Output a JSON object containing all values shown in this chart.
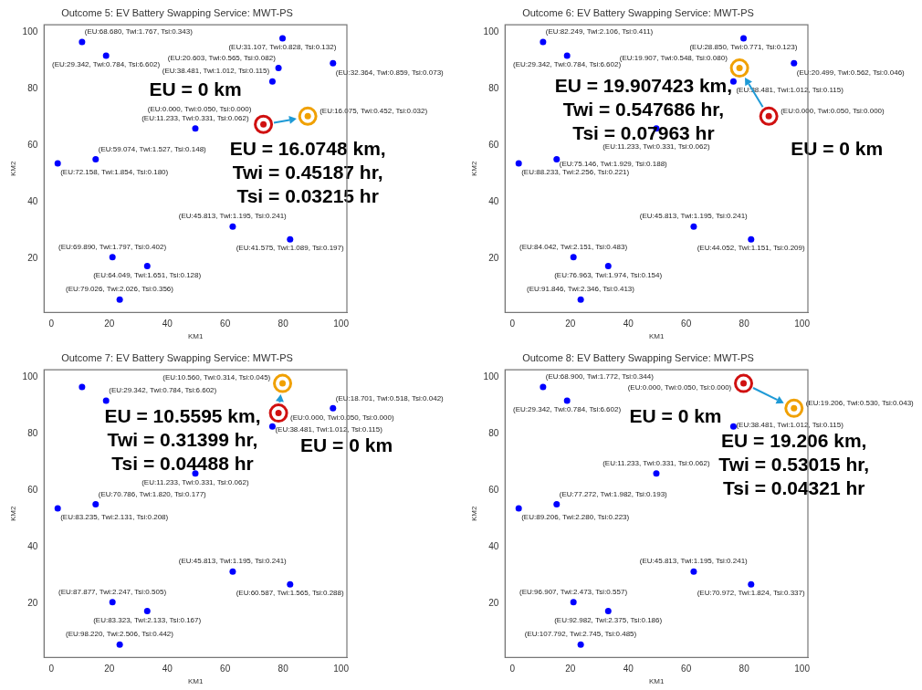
{
  "chart_data": [
    {
      "type": "scatter",
      "title": "Outcome 5: EV Battery Swapping Service: MWT-PS",
      "xlabel": "KM1",
      "ylabel": "KM2",
      "xlim": [
        -2.5,
        102
      ],
      "ylim": [
        0.9,
        102.6
      ],
      "xticks": [
        0,
        20,
        40,
        60,
        80,
        100
      ],
      "yticks": [
        20,
        40,
        60,
        80,
        100
      ],
      "marker": "circle",
      "series": [
        {
          "color": "#0000ff",
          "x": [
            10.6,
            18.9,
            79.8,
            97.2,
            78.4,
            76.3,
            49.7,
            2.2,
            15.3,
            62.6,
            82.4,
            21.1,
            33.1,
            23.6
          ],
          "values": [
            96.5,
            91.7,
            97.8,
            89.0,
            87.3,
            82.6,
            66.0,
            53.6,
            55.1,
            31.3,
            26.8,
            20.5,
            17.3,
            5.5
          ],
          "value_labels": [
            "(EU:68.680, Twi:1.767, Tsi:0.343)",
            "(EU:29.342, Twi:0.784, Tsi:6.602)",
            "(EU:31.107, Twi:0.828, Tsi:0.132)",
            "(EU:32.364, Twi:0.859, Tsi:0.073)",
            "(EU:20.603, Twi:0.565, Tsi:0.082)",
            "(EU:38.481, Twi:1.012, Tsi:0.115)",
            "(EU:11.233, Twi:0.331, Tsi:0.062)",
            "(EU:72.158, Twi:1.854, Tsi:0.180)",
            "(EU:59.074, Twi:1.527, Tsi:0.148)",
            "(EU:45.813, Twi:1.195, Tsi:0.241)",
            "(EU:41.575, Twi:1.089, Tsi:0.197)",
            "(EU:69.890, Twi:1.797, Tsi:0.402)",
            "(EU:64.049, Twi:1.651, Tsi:0.128)",
            "(EU:79.026, Twi:2.026, Tsi:0.356)"
          ]
        },
        {
          "color": "#d01010",
          "x": [
            73.2
          ],
          "values": [
            67.4
          ],
          "value_labels": [
            "(EU:0.000, Twi:0.050, Tsi:0.000)"
          ]
        },
        {
          "color": "#f0a000",
          "x": [
            88.5
          ],
          "values": [
            70.3
          ],
          "value_labels": [
            "(EU:16.075, Twi:0.452, Tsi:0.032)"
          ]
        }
      ],
      "annotations": [
        {
          "text": "EU = 0 km",
          "x": 73.2,
          "y": 67.4
        },
        {
          "text": "EU = 16.0748 km,\nTwi = 0.45187 hr,\nTsi = 0.03215 hr",
          "x": 88.5,
          "y": 70.3
        }
      ]
    },
    {
      "type": "scatter",
      "title": "Outcome 6: EV Battery Swapping Service: MWT-PS",
      "xlabel": "KM1",
      "ylabel": "KM2",
      "xlim": [
        -2.5,
        102
      ],
      "ylim": [
        0.9,
        102.6
      ],
      "xticks": [
        0,
        20,
        40,
        60,
        80,
        100
      ],
      "yticks": [
        20,
        40,
        60,
        80,
        100
      ],
      "marker": "circle",
      "series": [
        {
          "color": "#0000ff",
          "x": [
            10.6,
            18.9,
            79.8,
            97.2,
            76.3,
            49.7,
            2.2,
            15.3,
            62.6,
            82.4,
            21.1,
            33.1,
            23.6
          ],
          "values": [
            96.5,
            91.7,
            97.8,
            89.0,
            82.6,
            66.0,
            53.6,
            55.1,
            31.3,
            26.8,
            20.5,
            17.3,
            5.5
          ],
          "value_labels": [
            "(EU:82.249, Twi:2.106, Tsi:0.411)",
            "(EU:29.342, Twi:0.784, Tsi:6.602)",
            "(EU:28.850, Twi:0.771, Tsi:0.123)",
            "(EU:20.499, Twi:0.562, Tsi:0.046)",
            "(EU:38.481, Twi:1.012, Tsi:0.115)",
            "(EU:11.233, Twi:0.331, Tsi:0.062)",
            "(EU:88.233, Twi:2.256, Tsi:0.221)",
            "(EU:75.146, Twi:1.929, Tsi:0.188)",
            "(EU:45.813, Twi:1.195, Tsi:0.241)",
            "(EU:44.052, Twi:1.151, Tsi:0.209)",
            "(EU:84.042, Twi:2.151, Tsi:0.483)",
            "(EU:76.963, Twi:1.974, Tsi:0.154)",
            "(EU:91.846, Twi:2.346, Tsi:0.413)"
          ]
        },
        {
          "color": "#d01010",
          "x": [
            88.5
          ],
          "values": [
            70.3
          ],
          "value_labels": [
            "(EU:0.000, Twi:0.050, Tsi:0.000)"
          ]
        },
        {
          "color": "#f0a000",
          "x": [
            78.4
          ],
          "values": [
            87.3
          ],
          "value_labels": [
            "(EU:19.907, Twi:0.548, Tsi:0.080)"
          ]
        }
      ],
      "annotations": [
        {
          "text": "EU = 19.907423 km,\nTwi = 0.547686 hr,\nTsi = 0.07963 hr",
          "x": 78.4,
          "y": 87.3
        },
        {
          "text": "EU = 0 km",
          "x": 88.5,
          "y": 70.3
        }
      ]
    },
    {
      "type": "scatter",
      "title": "Outcome 7: EV Battery Swapping Service: MWT-PS",
      "xlabel": "KM1",
      "ylabel": "KM2",
      "xlim": [
        -2.5,
        102
      ],
      "ylim": [
        0.9,
        102.6
      ],
      "xticks": [
        0,
        20,
        40,
        60,
        80,
        100
      ],
      "yticks": [
        20,
        40,
        60,
        80,
        100
      ],
      "marker": "circle",
      "series": [
        {
          "color": "#0000ff",
          "x": [
            10.6,
            18.9,
            97.2,
            76.3,
            49.7,
            2.2,
            15.3,
            62.6,
            82.4,
            21.1,
            33.1,
            23.6
          ],
          "values": [
            96.5,
            91.7,
            89.0,
            82.6,
            66.0,
            53.6,
            55.1,
            31.3,
            26.8,
            20.5,
            17.3,
            5.5
          ],
          "value_labels": [
            null,
            "(EU:29.342, Twi:0.784, Tsi:6.602)",
            "(EU:18.701, Twi:0.518, Tsi:0.042)",
            "(EU:38.481, Twi:1.012, Tsi:0.115)",
            "(EU:11.233, Twi:0.331, Tsi:0.062)",
            "(EU:83.235, Twi:2.131, Tsi:0.208)",
            "(EU:70.786, Twi:1.820, Tsi:0.177)",
            "(EU:45.813, Twi:1.195, Tsi:0.241)",
            "(EU:60.587, Twi:1.565, Tsi:0.288)",
            "(EU:87.877, Twi:2.247, Tsi:0.505)",
            "(EU:83.323, Twi:2.133, Tsi:0.167)",
            "(EU:98.220, Twi:2.506, Tsi:0.442)"
          ]
        },
        {
          "color": "#d01010",
          "x": [
            78.4
          ],
          "values": [
            87.3
          ],
          "value_labels": [
            "(EU:0.000, Twi:0.050, Tsi:0.000)"
          ]
        },
        {
          "color": "#f0a000",
          "x": [
            79.8
          ],
          "values": [
            97.8
          ],
          "value_labels": [
            "(EU:10.560, Twi:0.314, Tsi:0.045)"
          ]
        }
      ],
      "annotations": [
        {
          "text": "EU = 10.5595 km,\nTwi = 0.31399 hr,\nTsi = 0.04488 hr",
          "x": 79.8,
          "y": 97.8
        },
        {
          "text": "EU = 0 km",
          "x": 78.4,
          "y": 87.3
        }
      ]
    },
    {
      "type": "scatter",
      "title": "Outcome 8: EV Battery Swapping Service: MWT-PS",
      "xlabel": "KM1",
      "ylabel": "KM2",
      "xlim": [
        -2.5,
        102
      ],
      "ylim": [
        0.9,
        102.6
      ],
      "xticks": [
        0,
        20,
        40,
        60,
        80,
        100
      ],
      "yticks": [
        20,
        40,
        60,
        80,
        100
      ],
      "marker": "circle",
      "series": [
        {
          "color": "#0000ff",
          "x": [
            10.6,
            18.9,
            76.3,
            49.7,
            2.2,
            15.3,
            62.6,
            82.4,
            21.1,
            33.1,
            23.6
          ],
          "values": [
            96.5,
            91.7,
            82.6,
            66.0,
            53.6,
            55.1,
            31.3,
            26.8,
            20.5,
            17.3,
            5.5
          ],
          "value_labels": [
            "(EU:68.900, Twi:1.772, Tsi:0.344)",
            "(EU:29.342, Twi:0.784, Tsi:6.602)",
            "(EU:38.481, Twi:1.012, Tsi:0.115)",
            "(EU:11.233, Twi:0.331, Tsi:0.062)",
            "(EU:89.206, Twi:2.280, Tsi:0.223)",
            "(EU:77.272, Twi:1.982, Tsi:0.193)",
            "(EU:45.813, Twi:1.195, Tsi:0.241)",
            "(EU:70.972, Twi:1.824, Tsi:0.337)",
            "(EU:96.907, Twi:2.473, Tsi:0.557)",
            "(EU:92.982, Twi:2.375, Tsi:0.186)",
            "(EU:107.792, Twi:2.745, Tsi:0.485)"
          ]
        },
        {
          "color": "#d01010",
          "x": [
            79.8
          ],
          "values": [
            97.8
          ],
          "value_labels": [
            "(EU:0.000, Twi:0.050, Tsi:0.000)"
          ]
        },
        {
          "color": "#f0a000",
          "x": [
            97.2
          ],
          "values": [
            89.0
          ],
          "value_labels": [
            "(EU:19.206, Twi:0.530, Tsi:0.043)"
          ]
        }
      ],
      "annotations": [
        {
          "text": "EU = 0 km",
          "x": 79.8,
          "y": 97.8
        },
        {
          "text": "EU = 19.206 km,\nTwi = 0.53015 hr,\nTsi = 0.04321 hr",
          "x": 97.2,
          "y": 89.0
        }
      ]
    }
  ]
}
